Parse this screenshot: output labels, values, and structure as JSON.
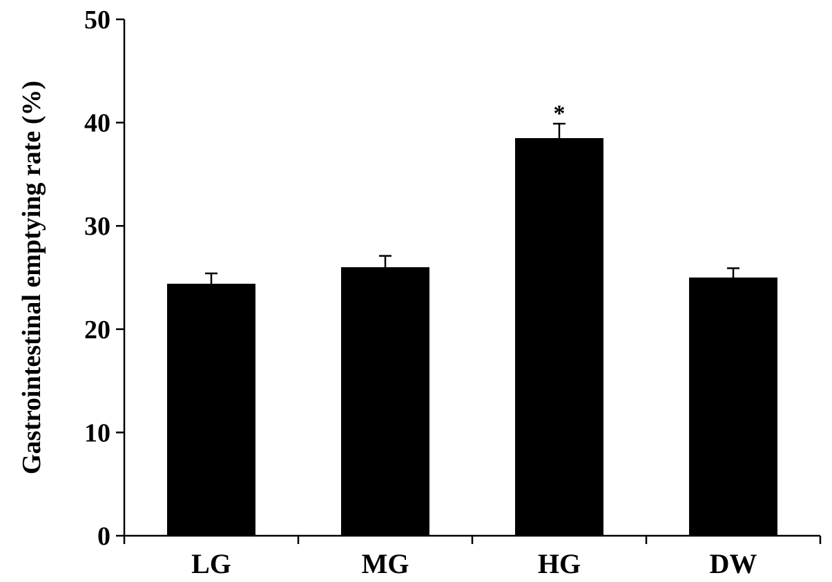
{
  "chart_data": {
    "type": "bar",
    "title": "",
    "xlabel": "",
    "ylabel": "Gastrointestinal emptying rate (%)",
    "ylim": [
      0,
      50
    ],
    "yticks": [
      0,
      10,
      20,
      30,
      40,
      50
    ],
    "grid": false,
    "categories": [
      "LG",
      "MG",
      "HG",
      "DW"
    ],
    "values": [
      24.4,
      26.0,
      38.5,
      25.0
    ],
    "errors": [
      1.0,
      1.1,
      1.4,
      0.9
    ],
    "annotations": [
      "",
      "",
      "*",
      ""
    ],
    "bar_color": "#000000"
  }
}
